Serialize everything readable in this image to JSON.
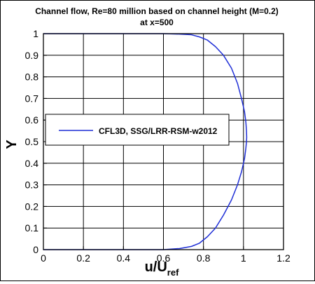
{
  "chart_data": {
    "type": "line",
    "title_line1": "Channel flow, Re=80 million based on channel height (M=0.2)",
    "title_line2": "at x=500",
    "xlabel_main": "u/U",
    "xlabel_sub": "ref",
    "ylabel": "Y",
    "xlim": [
      0,
      1.2
    ],
    "ylim": [
      0,
      1
    ],
    "x_ticks": [
      0,
      0.2,
      0.4,
      0.6,
      0.8,
      1,
      1.2
    ],
    "x_tick_labels": [
      "0",
      "0.2",
      "0.4",
      "0.6",
      "0.8",
      "1",
      "1.2"
    ],
    "y_ticks": [
      0,
      0.1,
      0.2,
      0.3,
      0.4,
      0.5,
      0.6,
      0.7,
      0.8,
      0.9,
      1
    ],
    "y_tick_labels": [
      "0",
      "0.1",
      "0.2",
      "0.3",
      "0.4",
      "0.5",
      "0.6",
      "0.7",
      "0.8",
      "0.9",
      "1"
    ],
    "grid": true,
    "legend_position": "center-left",
    "series": [
      {
        "name": "CFL3D, SSG/LRR-RSM-w2012",
        "color": "#1f2fd6",
        "x": [
          0.0,
          0.6,
          0.68,
          0.74,
          0.78,
          0.82,
          0.86,
          0.9,
          0.94,
          0.97,
          0.99,
          1.005,
          1.012,
          1.015,
          1.016,
          1.015,
          1.012,
          1.005,
          0.99,
          0.97,
          0.94,
          0.9,
          0.86,
          0.82,
          0.78,
          0.74,
          0.68,
          0.6,
          0.0
        ],
        "y": [
          0.0,
          0.0,
          0.005,
          0.015,
          0.03,
          0.06,
          0.1,
          0.16,
          0.23,
          0.3,
          0.36,
          0.42,
          0.47,
          0.5,
          0.52,
          0.55,
          0.59,
          0.64,
          0.7,
          0.77,
          0.84,
          0.9,
          0.94,
          0.97,
          0.985,
          0.995,
          0.998,
          1.0,
          1.0
        ]
      }
    ]
  }
}
